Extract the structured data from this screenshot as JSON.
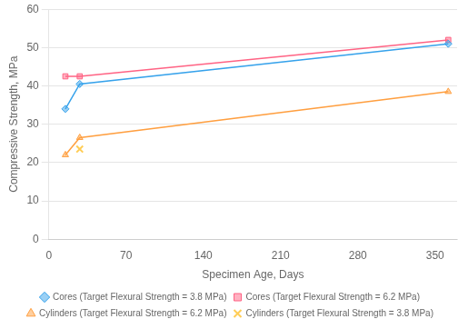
{
  "chart_data": {
    "type": "line",
    "x_label": "Specimen Age, Days",
    "y_label": "Compressive Strength, MPa",
    "series": [
      {
        "name": "Cores (Target Flexural Strength = 3.8 MPa)",
        "x": [
          15,
          28,
          362
        ],
        "values": [
          34.0,
          40.5,
          51.0
        ],
        "marker": "diamond",
        "line_style": "solid"
      },
      {
        "name": "Cores (Target Flexural Strength = 6.2 MPa)",
        "x": [
          15,
          28,
          362
        ],
        "values": [
          42.5,
          42.5,
          52.0
        ],
        "marker": "square",
        "line_style": "solid"
      },
      {
        "name": "Cylinders (Target Flexural Strength = 6.2 MPa)",
        "x": [
          15,
          28,
          362
        ],
        "values": [
          22.0,
          26.5,
          38.5
        ],
        "marker": "triangle",
        "line_style": "solid"
      },
      {
        "name": "Cylinders (Target Flexural Strength = 3.8 MPa)",
        "x": [
          28
        ],
        "values": [
          23.5
        ],
        "marker": "x",
        "line_style": "none"
      }
    ],
    "xlim": [
      0,
      370
    ],
    "xticks": [
      0,
      70,
      140,
      210,
      280,
      350
    ],
    "ylim": [
      0,
      60
    ],
    "yticks": [
      0,
      10,
      20,
      30,
      40,
      50,
      60
    ],
    "grid": "y",
    "legend": "bottom"
  }
}
